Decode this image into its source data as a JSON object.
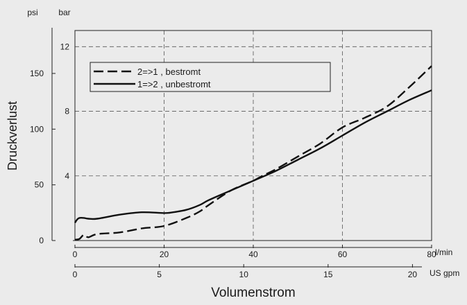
{
  "chart_data": {
    "type": "line",
    "title": "",
    "ylabel": "Druckverlust",
    "xlabel": "Volumenstrom",
    "x_unit_primary": "l/min",
    "x_unit_secondary": "US gpm",
    "y_unit_left": "psi",
    "y_unit_right": "bar",
    "xlim": [
      0,
      80
    ],
    "ylim_bar": [
      0,
      13.0
    ],
    "x_ticks_primary": [
      0,
      20,
      40,
      60,
      80
    ],
    "x_ticks_secondary": [
      0,
      5,
      10,
      15,
      20
    ],
    "y_ticks_psi": [
      0,
      50,
      100,
      150
    ],
    "y_ticks_bar": [
      4,
      8,
      12
    ],
    "grid": "dashed",
    "legend_position": "top-left",
    "series": [
      {
        "name": "2=>1 , bestromt",
        "style": "dashed",
        "x": [
          0,
          1,
          2,
          3,
          5,
          10,
          15,
          20,
          25,
          28,
          30,
          35,
          40,
          42,
          45,
          50,
          55,
          60,
          65,
          70,
          75,
          80
        ],
        "y": [
          0.05,
          0.1,
          0.35,
          0.2,
          0.4,
          0.5,
          0.75,
          0.9,
          1.4,
          1.8,
          2.2,
          3.1,
          3.7,
          4.0,
          4.4,
          5.2,
          6.0,
          7.0,
          7.6,
          8.3,
          9.5,
          10.8
        ]
      },
      {
        "name": "1=>2 , unbestromt",
        "style": "solid",
        "x": [
          0,
          0.5,
          1,
          2,
          3,
          5,
          10,
          15,
          20,
          22,
          25,
          28,
          30,
          35,
          40,
          45,
          50,
          55,
          60,
          65,
          70,
          75,
          80
        ],
        "y": [
          1.1,
          1.3,
          1.4,
          1.4,
          1.35,
          1.35,
          1.6,
          1.75,
          1.7,
          1.75,
          1.9,
          2.2,
          2.5,
          3.1,
          3.7,
          4.3,
          5.0,
          5.7,
          6.5,
          7.3,
          8.0,
          8.7,
          9.3
        ]
      }
    ]
  }
}
